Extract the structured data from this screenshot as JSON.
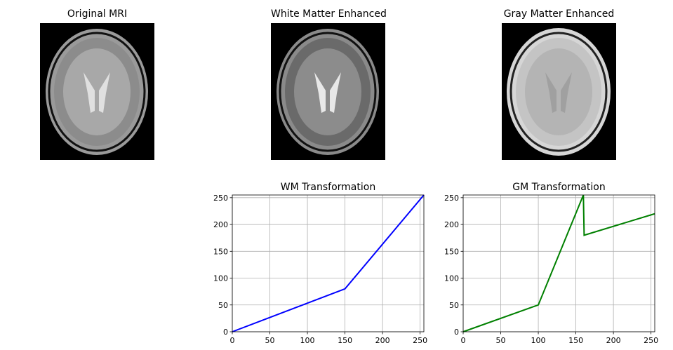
{
  "images": [
    {
      "title": "Original MRI"
    },
    {
      "title": "White Matter Enhanced"
    },
    {
      "title": "Gray Matter Enhanced"
    }
  ],
  "chart_data": [
    {
      "type": "line",
      "title": "WM Transformation",
      "xlabel": "",
      "ylabel": "",
      "xlim": [
        0,
        255
      ],
      "ylim": [
        0,
        255
      ],
      "xticks": [
        0,
        50,
        100,
        150,
        200,
        250
      ],
      "yticks": [
        0,
        50,
        100,
        150,
        200,
        250
      ],
      "grid": true,
      "series": [
        {
          "color": "#0000ff",
          "x": [
            0,
            150,
            255
          ],
          "y": [
            0,
            80,
            255
          ]
        }
      ]
    },
    {
      "type": "line",
      "title": "GM Transformation",
      "xlabel": "",
      "ylabel": "",
      "xlim": [
        0,
        255
      ],
      "ylim": [
        0,
        255
      ],
      "xticks": [
        0,
        50,
        100,
        150,
        200,
        250
      ],
      "yticks": [
        0,
        50,
        100,
        150,
        200,
        250
      ],
      "grid": true,
      "series": [
        {
          "color": "#008000",
          "x": [
            0,
            100,
            160,
            161,
            255
          ],
          "y": [
            0,
            50,
            255,
            180,
            220
          ]
        }
      ]
    }
  ]
}
